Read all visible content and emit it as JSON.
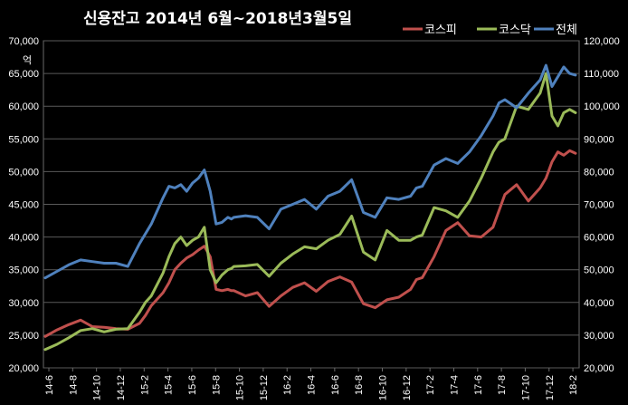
{
  "chart_data": {
    "type": "line",
    "title": "신용잔고 2014년 6월~2018년3월5일",
    "y_unit_label": "억",
    "grid": true,
    "legend_position": "top-right",
    "x_tick_labels": [
      "14-6",
      "14-8",
      "14-10",
      "14-12",
      "15-2",
      "15-4",
      "15-6",
      "15-8",
      "15-10",
      "15-12",
      "16-2",
      "16-4",
      "16-6",
      "16-8",
      "16-10",
      "16-12",
      "17-2",
      "17-4",
      "17-6",
      "17-8",
      "17-10",
      "17-12",
      "18-2"
    ],
    "left_axis": {
      "range": [
        20000,
        70000
      ],
      "ticks": [
        "20,000",
        "25,000",
        "30,000",
        "35,000",
        "40,000",
        "45,000",
        "50,000",
        "55,000",
        "60,000",
        "65,000",
        "70,000"
      ]
    },
    "right_axis": {
      "range": [
        20000,
        120000
      ],
      "ticks": [
        "20,000",
        "30,000",
        "40,000",
        "50,000",
        "60,000",
        "70,000",
        "80,000",
        "90,000",
        "100,000",
        "110,000",
        "120,000"
      ]
    },
    "x_domain": [
      0,
      45
    ],
    "series": [
      {
        "name": "코스피",
        "axis": "left",
        "color": "#c0504d",
        "x": [
          0,
          1,
          2,
          3,
          4,
          5,
          6,
          7,
          8,
          8.5,
          9,
          10,
          10.5,
          11,
          11.5,
          12,
          12.5,
          13,
          13.5,
          14,
          14.5,
          15,
          15.5,
          15.8,
          16,
          17,
          18,
          19,
          20,
          21,
          22,
          23,
          24,
          25,
          26,
          27,
          28,
          29,
          30,
          31,
          31.5,
          32,
          33,
          34,
          35,
          36,
          37,
          38,
          38.5,
          39,
          40,
          41,
          42,
          42.5,
          43,
          43.5,
          44,
          44.5,
          45
        ],
        "y": [
          24800,
          25800,
          26600,
          27300,
          26300,
          26200,
          26000,
          25900,
          26800,
          28000,
          29500,
          31500,
          33000,
          35000,
          36000,
          36800,
          37300,
          38000,
          38600,
          37000,
          32000,
          31800,
          32000,
          31800,
          31800,
          31000,
          31500,
          29400,
          31000,
          32300,
          33000,
          31700,
          33200,
          33900,
          33100,
          29800,
          29200,
          30400,
          30800,
          32000,
          33500,
          33800,
          37000,
          41000,
          42200,
          40200,
          40000,
          41500,
          44000,
          46500,
          48000,
          45500,
          47500,
          49000,
          51500,
          53000,
          52500,
          53200,
          52800
        ]
      },
      {
        "name": "코스닥",
        "axis": "left",
        "color": "#9bbb59",
        "x": [
          0,
          1,
          2,
          3,
          4,
          5,
          6,
          7,
          8,
          8.5,
          9,
          10,
          10.5,
          11,
          11.5,
          12,
          12.5,
          13,
          13.5,
          14,
          14.5,
          15,
          15.5,
          15.8,
          16,
          17,
          18,
          19,
          20,
          21,
          22,
          23,
          24,
          25,
          26,
          27,
          28,
          29,
          30,
          31,
          31.5,
          32,
          33,
          34,
          35,
          36,
          37,
          38,
          38.5,
          39,
          40,
          41,
          42,
          42.5,
          43,
          43.5,
          44,
          44.5,
          45
        ],
        "y": [
          22800,
          23600,
          24600,
          25700,
          26000,
          25500,
          25900,
          26000,
          28500,
          30000,
          31000,
          34500,
          37000,
          39000,
          40000,
          38700,
          39500,
          40000,
          41500,
          35000,
          33000,
          34200,
          35000,
          35200,
          35500,
          35600,
          35800,
          34000,
          36000,
          37400,
          38500,
          38200,
          39500,
          40400,
          43200,
          37700,
          36500,
          41000,
          39500,
          39500,
          40000,
          40300,
          44500,
          44000,
          43000,
          45500,
          49000,
          53000,
          54500,
          55000,
          60000,
          59500,
          62000,
          65000,
          58500,
          57000,
          59000,
          59500,
          59000
        ]
      },
      {
        "name": "전체",
        "axis": "right",
        "color": "#4f81bd",
        "x": [
          0,
          1,
          2,
          3,
          4,
          5,
          6,
          7,
          8,
          8.5,
          9,
          10,
          10.5,
          11,
          11.5,
          12,
          12.5,
          13,
          13.5,
          14,
          14.5,
          15,
          15.5,
          15.8,
          16,
          17,
          18,
          19,
          20,
          21,
          22,
          23,
          24,
          25,
          26,
          27,
          28,
          29,
          30,
          31,
          31.5,
          32,
          33,
          34,
          35,
          36,
          37,
          38,
          38.5,
          39,
          40,
          41,
          42,
          42.5,
          43,
          43.5,
          44,
          44.5,
          45
        ],
        "y": [
          47500,
          49500,
          51500,
          53000,
          52500,
          52000,
          52000,
          51000,
          58000,
          61000,
          64000,
          72000,
          75500,
          75000,
          76000,
          74000,
          76500,
          78000,
          80500,
          74000,
          64000,
          64500,
          66000,
          65500,
          66000,
          66500,
          66000,
          62500,
          68500,
          70000,
          71500,
          68500,
          72500,
          74000,
          77500,
          67500,
          66000,
          72000,
          71500,
          72500,
          75000,
          75500,
          82000,
          84000,
          82500,
          86000,
          91000,
          97000,
          101000,
          102000,
          99500,
          104000,
          108000,
          112500,
          106000,
          109000,
          112000,
          110000,
          109500
        ]
      }
    ]
  }
}
